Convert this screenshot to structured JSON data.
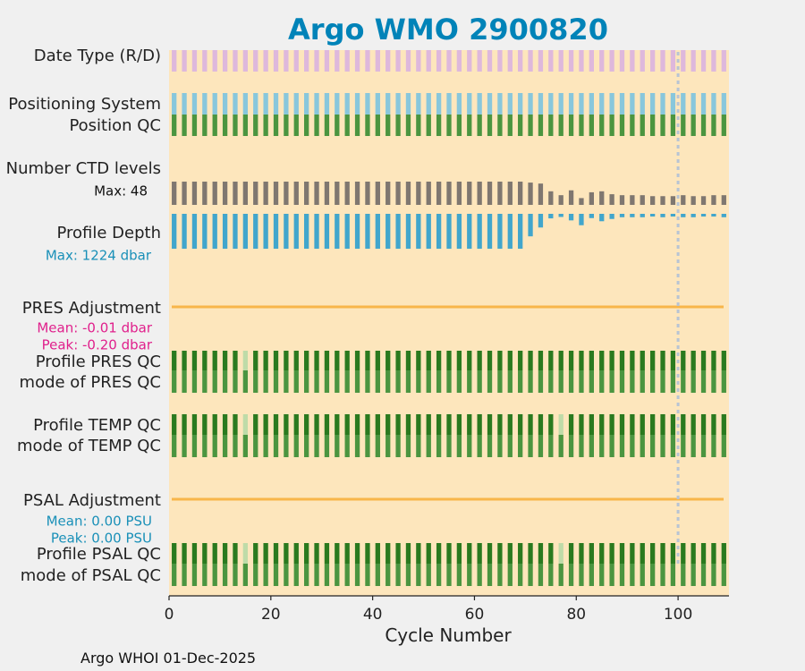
{
  "chart_data": {
    "type": "bar",
    "title": "Argo WMO 2900820",
    "title_color": "#0083b8",
    "xlabel": "Cycle Number",
    "xlim": [
      0,
      110
    ],
    "xticks": [
      0,
      20,
      40,
      60,
      80,
      100
    ],
    "cycle_start": 1,
    "cycle_end": 109,
    "cycle_step": 2,
    "marker_cycle": 100,
    "footer": "Argo WHOI 01-Dec-2025",
    "rows": [
      {
        "label": "Date Type (R/D)",
        "kind": "full",
        "color": "#deb8dc"
      },
      {
        "label": "Positioning System",
        "kind": "full",
        "color": "#88c7dc"
      },
      {
        "label": "Position QC",
        "kind": "full",
        "color": "#4b9540"
      },
      {
        "label": "Number CTD levels",
        "kind": "levels",
        "color": "#7f7770",
        "info": "Max: 48",
        "info_color": "#111111"
      },
      {
        "label": "Profile Depth",
        "kind": "depth",
        "color": "#41a6cc",
        "info": "Max: 1224 dbar",
        "info_color": "#1a90b8"
      },
      {
        "label": "PRES Adjustment",
        "kind": "line",
        "color": "#f8b64a"
      },
      {
        "label": "Profile PRES QC",
        "kind": "qc_top",
        "color": "#2a7a1f",
        "faint_color": "#bfdba8",
        "faint": [
          15
        ]
      },
      {
        "label": "mode of PRES QC",
        "kind": "qc_bottom",
        "color": "#4b9540",
        "faint_color": "#bfdba8",
        "faint": []
      },
      {
        "label": "Profile TEMP QC",
        "kind": "qc_top",
        "color": "#2a7a1f",
        "faint_color": "#bfdba8",
        "faint": [
          15,
          77
        ]
      },
      {
        "label": "mode of TEMP QC",
        "kind": "qc_bottom",
        "color": "#4b9540",
        "faint_color": "#bfdba8",
        "faint": []
      },
      {
        "label": "PSAL Adjustment",
        "kind": "line",
        "color": "#f8b64a"
      },
      {
        "label": "Profile PSAL QC",
        "kind": "qc_top",
        "color": "#2a7a1f",
        "faint_color": "#bfdba8",
        "faint": [
          15,
          77
        ]
      },
      {
        "label": "mode of PSAL QC",
        "kind": "qc_bottom",
        "color": "#4b9540",
        "faint_color": "#bfdba8",
        "faint": []
      }
    ],
    "pres_adjustment": {
      "mean": "Mean: -0.01 dbar",
      "peak": "Peak: -0.20 dbar",
      "color": "#e0208c"
    },
    "psal_adjustment": {
      "mean": "Mean: 0.00 PSU",
      "peak": "Peak: 0.00 PSU",
      "color": "#1a90b8"
    },
    "ctd_levels": [
      48,
      48,
      48,
      48,
      48,
      48,
      48,
      48,
      48,
      48,
      48,
      48,
      48,
      48,
      48,
      48,
      48,
      48,
      48,
      48,
      48,
      48,
      48,
      48,
      48,
      48,
      48,
      48,
      48,
      48,
      48,
      48,
      48,
      48,
      48,
      46,
      44,
      28,
      20,
      30,
      14,
      26,
      28,
      22,
      20,
      20,
      20,
      18,
      18,
      18,
      20,
      18,
      18,
      20,
      20
    ],
    "profile_depth": [
      1224,
      1224,
      1224,
      1224,
      1224,
      1224,
      1224,
      1224,
      1224,
      1224,
      1224,
      1224,
      1224,
      1224,
      1224,
      1224,
      1224,
      1224,
      1224,
      1224,
      1224,
      1224,
      1224,
      1224,
      1224,
      1224,
      1224,
      1224,
      1224,
      1224,
      1224,
      1224,
      1224,
      1224,
      1224,
      790,
      480,
      160,
      110,
      230,
      400,
      150,
      260,
      180,
      120,
      120,
      120,
      80,
      120,
      70,
      120,
      120,
      60,
      60,
      120
    ]
  }
}
